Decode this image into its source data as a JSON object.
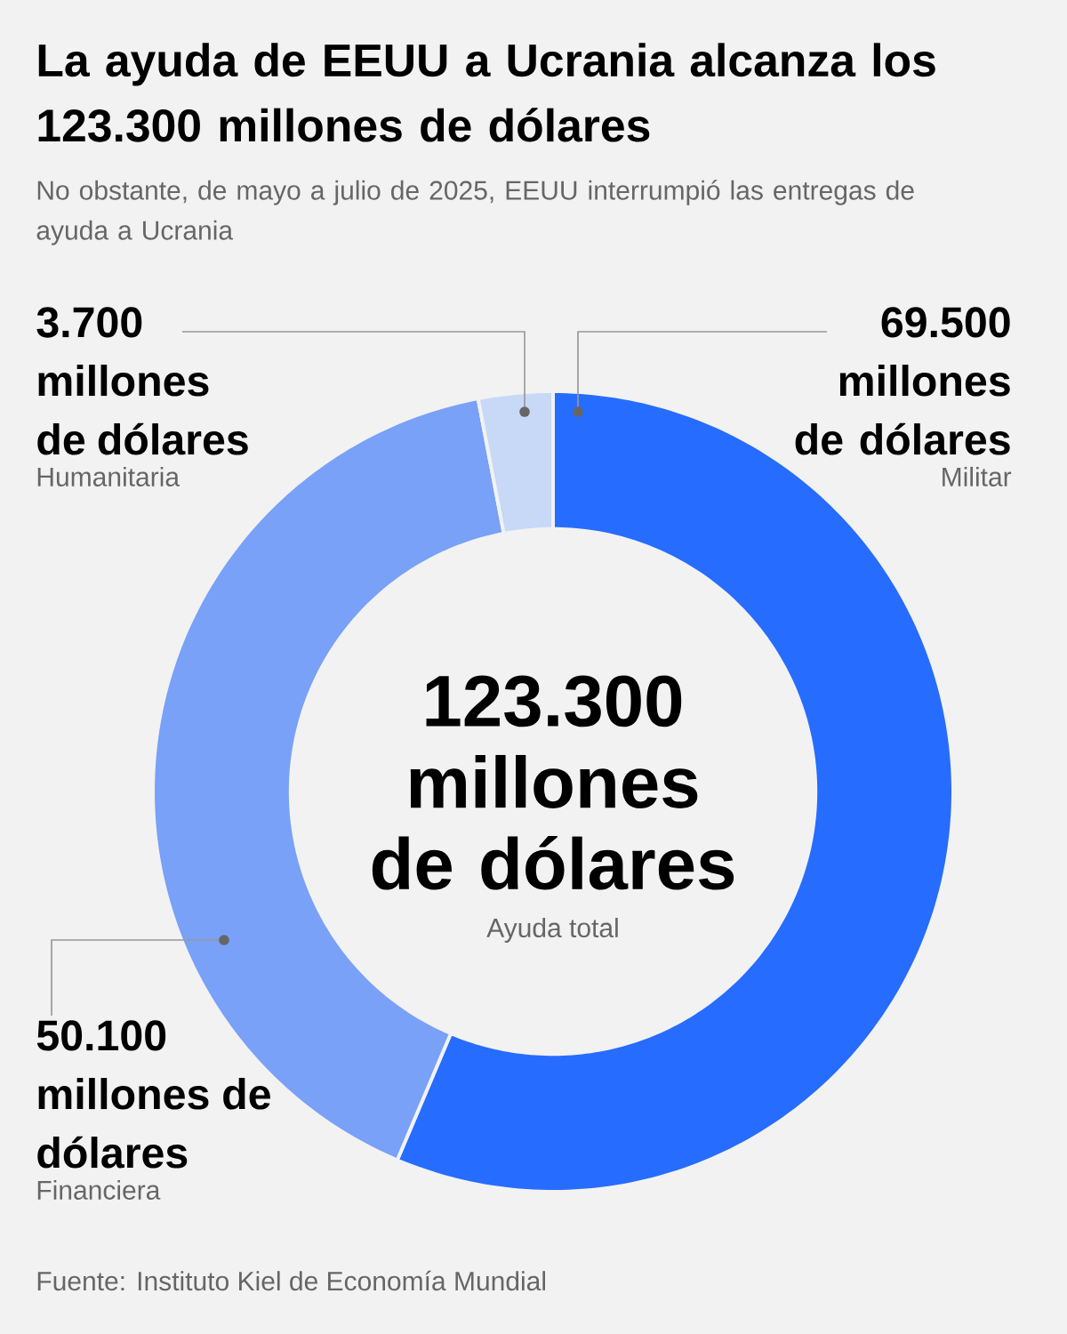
{
  "chart_data": {
    "type": "donut",
    "title": "La ayuda de EEUU a Ucrania alcanza los 123.300 millones de dólares",
    "subtitle": "No obstante, de mayo a julio de 2025, EEUU interrumpió las entregas de ayuda a Ucrania",
    "categories": [
      "Militar",
      "Financiera",
      "Humanitaria"
    ],
    "values": [
      69500,
      50100,
      3700
    ],
    "colors": [
      "#266cff",
      "#78a1f7",
      "#c8d8f7"
    ],
    "value_labels": [
      "69.500 millones de dólares",
      "50.100 millones de dólares",
      "3.700 millones de dólares"
    ],
    "annotations": [
      "123.300 millones de dólares",
      "Ayuda total",
      "Fuente: Instituto Kiel de Economía Mundial"
    ]
  }
}
